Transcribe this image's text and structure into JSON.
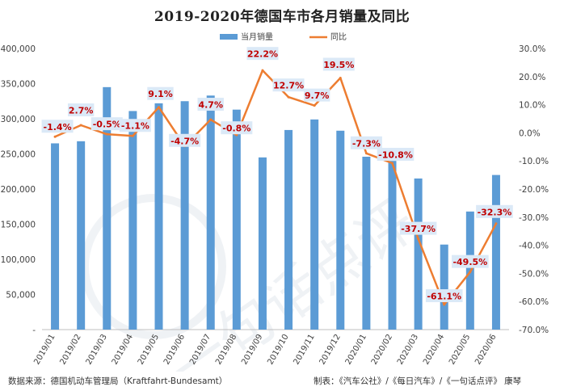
{
  "page": {
    "title": "2019-2020年德国车市各月销量及同比",
    "source": "数据来源：德国机动车管理局（Kraftfahrt-Bundesamt）",
    "credit": "制表：《汽车公社》/《每日汽车》/《一句话点评》 康琴",
    "watermark": "一句话点评"
  },
  "colors": {
    "bar": "#5b9bd5",
    "line": "#ed7d31",
    "label_text": "#c00000",
    "label_bg": "#dbe9f7"
  },
  "chart_data": {
    "type": "bar",
    "title": "2019-2020年德国车市各月销量及同比",
    "categories": [
      "2019/01",
      "2019/02",
      "2019/03",
      "2019/04",
      "2019/05",
      "2019/06",
      "2019/07",
      "2019/08",
      "2019/09",
      "2019/10",
      "2019/11",
      "2019/12",
      "2020/01",
      "2020/02",
      "2020/03",
      "2020/04",
      "2020/05",
      "2020/06"
    ],
    "series": [
      {
        "name": "当月销量",
        "type": "bar",
        "axis": "left",
        "values": [
          265000,
          268000,
          345000,
          311000,
          322000,
          325000,
          333000,
          313000,
          245000,
          284000,
          299000,
          283000,
          246000,
          240000,
          215000,
          121000,
          168000,
          220000
        ]
      },
      {
        "name": "同比",
        "type": "line",
        "axis": "right",
        "values": [
          -1.4,
          2.7,
          -0.5,
          -1.1,
          9.1,
          -4.7,
          4.7,
          -0.8,
          22.2,
          12.7,
          9.7,
          19.5,
          -7.3,
          -10.8,
          -37.7,
          -61.1,
          -49.5,
          -32.3
        ],
        "labels": [
          "-1.4%",
          "2.7%",
          "-0.5%",
          "-1.1%",
          "9.1%",
          "-4.7%",
          "4.7%",
          "-0.8%",
          "22.2%",
          "12.7%",
          "9.7%",
          "19.5%",
          "-7.3%",
          "-10.8%",
          "-37.7%",
          "-61.1%",
          "-49.5%",
          "-32.3%"
        ]
      }
    ],
    "y_left": {
      "min": 0,
      "max": 400000,
      "ticks": [
        "-",
        "50,000",
        "100,000",
        "150,000",
        "200,000",
        "250,000",
        "300,000",
        "350,000",
        "400,000"
      ]
    },
    "y_right": {
      "min": -70,
      "max": 30,
      "ticks": [
        "-70.0%",
        "-60.0%",
        "-50.0%",
        "-40.0%",
        "-30.0%",
        "-20.0%",
        "-10.0%",
        "0.0%",
        "10.0%",
        "20.0%",
        "30.0%"
      ]
    },
    "grid": false,
    "legend": "top-center"
  }
}
